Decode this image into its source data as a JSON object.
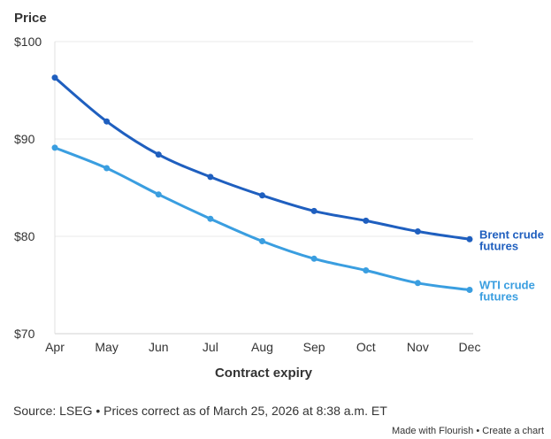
{
  "chart_data": {
    "type": "line",
    "ylabel": "Price",
    "xlabel": "Contract expiry",
    "categories": [
      "Apr",
      "May",
      "Jun",
      "Jul",
      "Aug",
      "Sep",
      "Oct",
      "Nov",
      "Dec"
    ],
    "yticks": [
      "$100",
      "$90",
      "$80",
      "$70"
    ],
    "ylim": [
      70,
      100
    ],
    "grid": true,
    "series": [
      {
        "name": "Brent crude futures",
        "label_lines": [
          "Brent crude",
          "futures"
        ],
        "color": "#1f5fbf",
        "values": [
          96.3,
          91.8,
          88.4,
          86.1,
          84.2,
          82.6,
          81.6,
          80.5,
          79.7
        ]
      },
      {
        "name": "WTI crude futures",
        "label_lines": [
          "WTI crude",
          "futures"
        ],
        "color": "#3a9ee0",
        "values": [
          89.1,
          87.0,
          84.3,
          81.8,
          79.5,
          77.7,
          76.5,
          75.2,
          74.5
        ]
      }
    ]
  },
  "source": "Source: LSEG • Prices correct as of March 25, 2026 at 8:38 a.m. ET",
  "footer": {
    "made_with": "Made with Flourish",
    "separator": "•",
    "create": "Create a chart"
  }
}
